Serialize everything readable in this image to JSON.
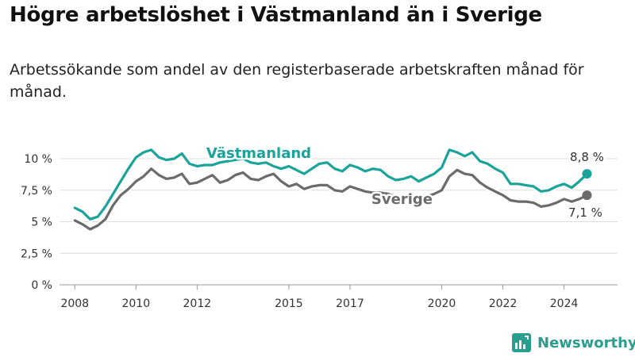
{
  "title": "Högre arbetslöshet i Västmanland än i Sverige",
  "subtitle": "Arbetssökande som andel av den registerbaserade arbetskraften månad för månad.",
  "brand": {
    "name": "Newsworthy",
    "color": "#2a9d8f"
  },
  "colors": {
    "vastmanland": "#1aa39a",
    "sverige": "#6b6b6b",
    "grid": "#dddddd",
    "text": "#333333"
  },
  "chart_data": {
    "type": "line",
    "ylim": [
      0,
      10
    ],
    "y_ticks": [
      0,
      2.5,
      5,
      7.5,
      10
    ],
    "y_tick_labels": [
      "0 %",
      "2,5 %",
      "5 %",
      "7,5 %",
      "10 %"
    ],
    "x_range": [
      2007.5,
      2025.75
    ],
    "x_ticks": [
      2008,
      2010,
      2012,
      2015,
      2017,
      2020,
      2022,
      2024
    ],
    "x_tick_labels": [
      "2008",
      "2010",
      "2012",
      "2015",
      "2017",
      "2020",
      "2022",
      "2024"
    ],
    "grid": true,
    "series": [
      {
        "name": "Västmanland",
        "end_label": "8,8 %",
        "points": [
          [
            2008.0,
            6.1
          ],
          [
            2008.25,
            5.8
          ],
          [
            2008.5,
            5.2
          ],
          [
            2008.75,
            5.4
          ],
          [
            2009.0,
            6.2
          ],
          [
            2009.25,
            7.2
          ],
          [
            2009.5,
            8.2
          ],
          [
            2009.75,
            9.2
          ],
          [
            2010.0,
            10.1
          ],
          [
            2010.25,
            10.5
          ],
          [
            2010.5,
            10.7
          ],
          [
            2010.75,
            10.1
          ],
          [
            2011.0,
            9.9
          ],
          [
            2011.25,
            10.0
          ],
          [
            2011.5,
            10.4
          ],
          [
            2011.75,
            9.6
          ],
          [
            2012.0,
            9.4
          ],
          [
            2012.25,
            9.5
          ],
          [
            2012.5,
            9.5
          ],
          [
            2012.75,
            9.7
          ],
          [
            2013.0,
            9.8
          ],
          [
            2013.25,
            9.9
          ],
          [
            2013.5,
            10.0
          ],
          [
            2013.75,
            9.7
          ],
          [
            2014.0,
            9.6
          ],
          [
            2014.25,
            9.7
          ],
          [
            2014.5,
            9.4
          ],
          [
            2014.75,
            9.2
          ],
          [
            2015.0,
            9.4
          ],
          [
            2015.25,
            9.1
          ],
          [
            2015.5,
            8.8
          ],
          [
            2015.75,
            9.2
          ],
          [
            2016.0,
            9.6
          ],
          [
            2016.25,
            9.7
          ],
          [
            2016.5,
            9.2
          ],
          [
            2016.75,
            9.0
          ],
          [
            2017.0,
            9.5
          ],
          [
            2017.25,
            9.3
          ],
          [
            2017.5,
            9.0
          ],
          [
            2017.75,
            9.2
          ],
          [
            2018.0,
            9.1
          ],
          [
            2018.25,
            8.6
          ],
          [
            2018.5,
            8.3
          ],
          [
            2018.75,
            8.4
          ],
          [
            2019.0,
            8.6
          ],
          [
            2019.25,
            8.2
          ],
          [
            2019.5,
            8.5
          ],
          [
            2019.75,
            8.8
          ],
          [
            2020.0,
            9.3
          ],
          [
            2020.25,
            10.7
          ],
          [
            2020.5,
            10.5
          ],
          [
            2020.75,
            10.2
          ],
          [
            2021.0,
            10.5
          ],
          [
            2021.25,
            9.8
          ],
          [
            2021.5,
            9.6
          ],
          [
            2021.75,
            9.2
          ],
          [
            2022.0,
            8.9
          ],
          [
            2022.25,
            8.0
          ],
          [
            2022.5,
            8.0
          ],
          [
            2022.75,
            7.9
          ],
          [
            2023.0,
            7.8
          ],
          [
            2023.25,
            7.4
          ],
          [
            2023.5,
            7.5
          ],
          [
            2023.75,
            7.8
          ],
          [
            2024.0,
            8.0
          ],
          [
            2024.25,
            7.7
          ],
          [
            2024.5,
            8.2
          ],
          [
            2024.75,
            8.8
          ]
        ]
      },
      {
        "name": "Sverige",
        "end_label": "7,1 %",
        "points": [
          [
            2008.0,
            5.1
          ],
          [
            2008.25,
            4.8
          ],
          [
            2008.5,
            4.4
          ],
          [
            2008.75,
            4.7
          ],
          [
            2009.0,
            5.2
          ],
          [
            2009.25,
            6.3
          ],
          [
            2009.5,
            7.1
          ],
          [
            2009.75,
            7.6
          ],
          [
            2010.0,
            8.2
          ],
          [
            2010.25,
            8.6
          ],
          [
            2010.5,
            9.2
          ],
          [
            2010.75,
            8.7
          ],
          [
            2011.0,
            8.4
          ],
          [
            2011.25,
            8.5
          ],
          [
            2011.5,
            8.8
          ],
          [
            2011.75,
            8.0
          ],
          [
            2012.0,
            8.1
          ],
          [
            2012.25,
            8.4
          ],
          [
            2012.5,
            8.7
          ],
          [
            2012.75,
            8.1
          ],
          [
            2013.0,
            8.3
          ],
          [
            2013.25,
            8.7
          ],
          [
            2013.5,
            8.9
          ],
          [
            2013.75,
            8.4
          ],
          [
            2014.0,
            8.3
          ],
          [
            2014.25,
            8.6
          ],
          [
            2014.5,
            8.8
          ],
          [
            2014.75,
            8.2
          ],
          [
            2015.0,
            7.8
          ],
          [
            2015.25,
            8.0
          ],
          [
            2015.5,
            7.6
          ],
          [
            2015.75,
            7.8
          ],
          [
            2016.0,
            7.9
          ],
          [
            2016.25,
            7.9
          ],
          [
            2016.5,
            7.5
          ],
          [
            2016.75,
            7.4
          ],
          [
            2017.0,
            7.8
          ],
          [
            2017.25,
            7.6
          ],
          [
            2017.5,
            7.4
          ],
          [
            2017.75,
            7.3
          ],
          [
            2018.0,
            7.3
          ],
          [
            2018.25,
            7.2
          ],
          [
            2018.5,
            7.0
          ],
          [
            2018.75,
            7.0
          ],
          [
            2019.0,
            7.0
          ],
          [
            2019.25,
            6.8
          ],
          [
            2019.5,
            7.0
          ],
          [
            2019.75,
            7.2
          ],
          [
            2020.0,
            7.5
          ],
          [
            2020.25,
            8.6
          ],
          [
            2020.5,
            9.1
          ],
          [
            2020.75,
            8.8
          ],
          [
            2021.0,
            8.7
          ],
          [
            2021.25,
            8.1
          ],
          [
            2021.5,
            7.7
          ],
          [
            2021.75,
            7.4
          ],
          [
            2022.0,
            7.1
          ],
          [
            2022.25,
            6.7
          ],
          [
            2022.5,
            6.6
          ],
          [
            2022.75,
            6.6
          ],
          [
            2023.0,
            6.5
          ],
          [
            2023.25,
            6.2
          ],
          [
            2023.5,
            6.3
          ],
          [
            2023.75,
            6.5
          ],
          [
            2024.0,
            6.8
          ],
          [
            2024.25,
            6.6
          ],
          [
            2024.5,
            6.8
          ],
          [
            2024.75,
            7.1
          ]
        ]
      }
    ]
  }
}
